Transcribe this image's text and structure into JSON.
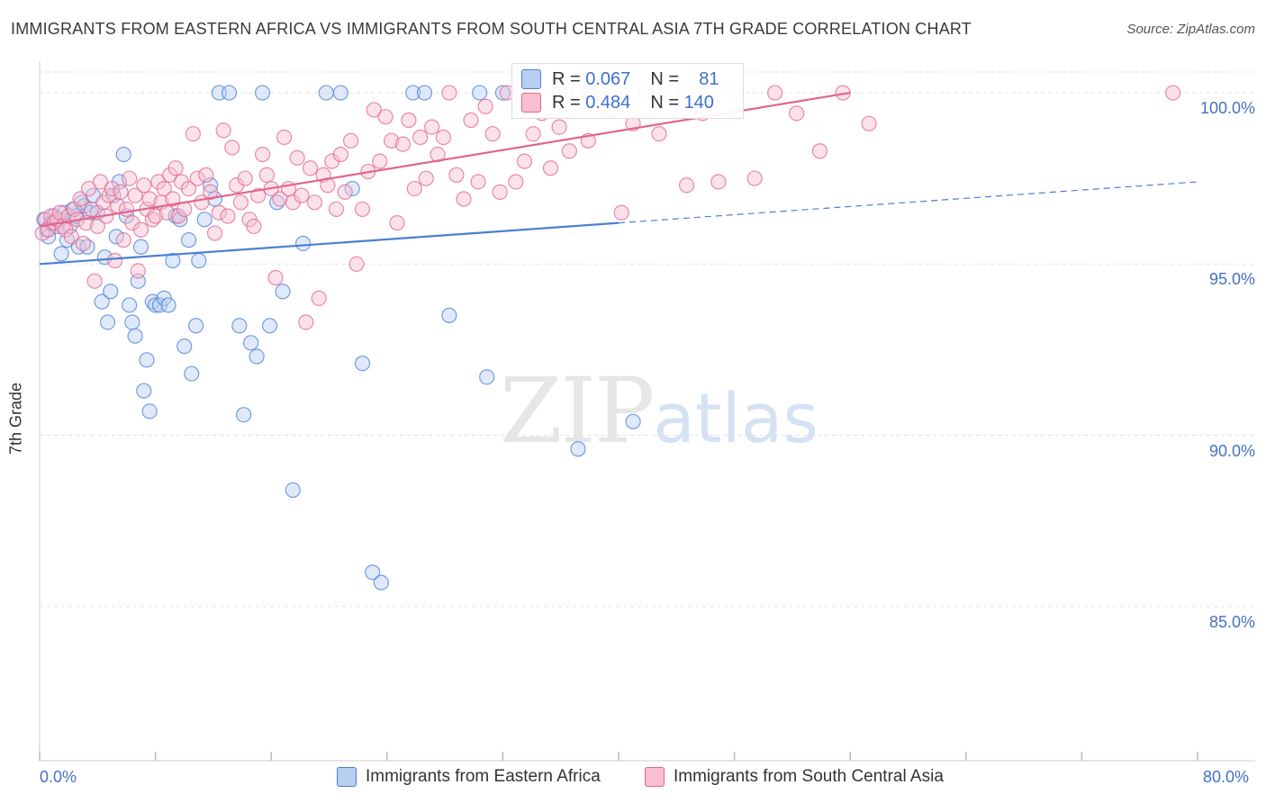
{
  "title": "IMMIGRANTS FROM EASTERN AFRICA VS IMMIGRANTS FROM SOUTH CENTRAL ASIA 7TH GRADE CORRELATION CHART",
  "source": "Source: ZipAtlas.com",
  "watermark": {
    "zip": "ZIP",
    "atlas": "atlas"
  },
  "colors": {
    "blue": "#4a7fd4",
    "blue_fill": "#b8cff1",
    "pink": "#e0668f",
    "pink_fill": "#f7bfd1",
    "tick_label": "#4472c4"
  },
  "legend": {
    "r_label": "R =",
    "n_label": "N =",
    "rows": [
      {
        "r": "0.067",
        "n": "81"
      },
      {
        "r": "0.484",
        "n": "140"
      }
    ]
  },
  "chart_data": {
    "type": "scatter",
    "title": "IMMIGRANTS FROM EASTERN AFRICA VS IMMIGRANTS FROM SOUTH CENTRAL ASIA 7TH GRADE CORRELATION CHART",
    "xlabel": "",
    "ylabel": "7th Grade",
    "xlim": [
      0,
      80
    ],
    "ylim": [
      80.5,
      101.0
    ],
    "x_tick_labels": [
      "0.0%",
      "80.0%"
    ],
    "y_ticks": [
      {
        "value": 100,
        "label": "100.0%"
      },
      {
        "value": 95,
        "label": "95.0%"
      },
      {
        "value": 90,
        "label": "90.0%"
      },
      {
        "value": 85,
        "label": "85.0%"
      }
    ],
    "grid": true,
    "legend_position": "top",
    "series": [
      {
        "name": "Immigrants from Eastern Africa",
        "r": 0.067,
        "n": 81,
        "trend": {
          "x0": 0,
          "y0": 95.0,
          "x1": 40,
          "y1": 96.2,
          "dashed_to_x": 80,
          "dashed_to_y": 97.4
        },
        "points": [
          [
            0.3,
            96.3
          ],
          [
            0.5,
            96.0
          ],
          [
            0.6,
            95.8
          ],
          [
            0.8,
            96.2
          ],
          [
            1.0,
            96.4
          ],
          [
            1.2,
            96.1
          ],
          [
            1.4,
            96.3
          ],
          [
            1.5,
            95.3
          ],
          [
            1.7,
            96.5
          ],
          [
            1.9,
            95.7
          ],
          [
            2.1,
            96.1
          ],
          [
            2.3,
            96.6
          ],
          [
            2.5,
            96.4
          ],
          [
            2.7,
            95.5
          ],
          [
            2.9,
            96.8
          ],
          [
            3.1,
            96.7
          ],
          [
            3.3,
            95.5
          ],
          [
            3.5,
            96.5
          ],
          [
            3.7,
            97.0
          ],
          [
            4.0,
            96.5
          ],
          [
            4.3,
            93.9
          ],
          [
            4.5,
            95.2
          ],
          [
            4.7,
            93.3
          ],
          [
            4.9,
            94.2
          ],
          [
            5.1,
            97.0
          ],
          [
            5.3,
            95.8
          ],
          [
            5.5,
            97.4
          ],
          [
            5.8,
            98.2
          ],
          [
            6.0,
            96.4
          ],
          [
            6.2,
            93.8
          ],
          [
            6.4,
            93.3
          ],
          [
            6.6,
            92.9
          ],
          [
            6.8,
            94.5
          ],
          [
            7.0,
            95.5
          ],
          [
            7.2,
            91.3
          ],
          [
            7.4,
            92.2
          ],
          [
            7.6,
            90.7
          ],
          [
            7.8,
            93.9
          ],
          [
            8.0,
            93.8
          ],
          [
            8.3,
            93.8
          ],
          [
            8.6,
            94.0
          ],
          [
            8.9,
            93.8
          ],
          [
            9.2,
            95.1
          ],
          [
            9.4,
            96.4
          ],
          [
            9.7,
            96.3
          ],
          [
            10.0,
            92.6
          ],
          [
            10.3,
            95.7
          ],
          [
            10.5,
            91.8
          ],
          [
            10.8,
            93.2
          ],
          [
            11.0,
            95.1
          ],
          [
            11.4,
            96.3
          ],
          [
            11.8,
            97.3
          ],
          [
            12.1,
            96.9
          ],
          [
            12.4,
            100.0
          ],
          [
            13.1,
            100.0
          ],
          [
            13.8,
            93.2
          ],
          [
            14.1,
            90.6
          ],
          [
            14.6,
            92.7
          ],
          [
            15.0,
            92.3
          ],
          [
            15.4,
            100.0
          ],
          [
            15.9,
            93.2
          ],
          [
            16.4,
            96.8
          ],
          [
            16.8,
            94.2
          ],
          [
            17.5,
            88.4
          ],
          [
            18.2,
            95.6
          ],
          [
            19.8,
            100.0
          ],
          [
            20.8,
            100.0
          ],
          [
            21.6,
            97.2
          ],
          [
            22.3,
            92.1
          ],
          [
            23.0,
            86.0
          ],
          [
            23.6,
            85.7
          ],
          [
            25.8,
            100.0
          ],
          [
            26.6,
            100.0
          ],
          [
            28.3,
            93.5
          ],
          [
            30.4,
            100.0
          ],
          [
            30.9,
            91.7
          ],
          [
            32.0,
            100.0
          ],
          [
            35.9,
            100.0
          ],
          [
            37.2,
            89.6
          ],
          [
            38.0,
            100.0
          ],
          [
            41.0,
            90.4
          ]
        ]
      },
      {
        "name": "Immigrants from South Central Asia",
        "r": 0.484,
        "n": 140,
        "trend": {
          "x0": 0,
          "y0": 96.1,
          "x1": 56,
          "y1": 100.0
        },
        "points": [
          [
            0.2,
            95.9
          ],
          [
            0.4,
            96.3
          ],
          [
            0.6,
            96.0
          ],
          [
            0.8,
            96.4
          ],
          [
            1.0,
            96.2
          ],
          [
            1.2,
            96.3
          ],
          [
            1.4,
            96.5
          ],
          [
            1.6,
            96.1
          ],
          [
            1.8,
            96.0
          ],
          [
            2.0,
            96.4
          ],
          [
            2.2,
            95.8
          ],
          [
            2.4,
            96.6
          ],
          [
            2.6,
            96.3
          ],
          [
            2.8,
            96.9
          ],
          [
            3.0,
            95.6
          ],
          [
            3.2,
            96.2
          ],
          [
            3.4,
            97.2
          ],
          [
            3.6,
            96.6
          ],
          [
            3.8,
            94.5
          ],
          [
            4.0,
            96.1
          ],
          [
            4.2,
            97.4
          ],
          [
            4.4,
            96.8
          ],
          [
            4.6,
            96.4
          ],
          [
            4.8,
            97.0
          ],
          [
            5.0,
            97.2
          ],
          [
            5.2,
            95.1
          ],
          [
            5.4,
            96.7
          ],
          [
            5.6,
            97.1
          ],
          [
            5.8,
            95.7
          ],
          [
            6.0,
            96.6
          ],
          [
            6.2,
            97.5
          ],
          [
            6.4,
            96.2
          ],
          [
            6.6,
            97.0
          ],
          [
            6.8,
            94.8
          ],
          [
            7.0,
            96.0
          ],
          [
            7.2,
            97.3
          ],
          [
            7.4,
            96.6
          ],
          [
            7.6,
            96.9
          ],
          [
            7.8,
            96.3
          ],
          [
            8.0,
            96.4
          ],
          [
            8.2,
            97.4
          ],
          [
            8.4,
            96.8
          ],
          [
            8.6,
            97.2
          ],
          [
            8.8,
            96.5
          ],
          [
            9.0,
            97.6
          ],
          [
            9.2,
            96.9
          ],
          [
            9.4,
            97.8
          ],
          [
            9.6,
            96.4
          ],
          [
            9.8,
            97.4
          ],
          [
            10.0,
            96.6
          ],
          [
            10.3,
            97.2
          ],
          [
            10.6,
            98.8
          ],
          [
            10.9,
            97.5
          ],
          [
            11.2,
            96.8
          ],
          [
            11.5,
            97.6
          ],
          [
            11.8,
            97.1
          ],
          [
            12.1,
            95.9
          ],
          [
            12.4,
            96.5
          ],
          [
            12.7,
            98.9
          ],
          [
            13.0,
            96.4
          ],
          [
            13.3,
            98.4
          ],
          [
            13.6,
            97.3
          ],
          [
            13.9,
            96.8
          ],
          [
            14.2,
            97.5
          ],
          [
            14.5,
            96.3
          ],
          [
            14.8,
            96.1
          ],
          [
            15.1,
            97.0
          ],
          [
            15.4,
            98.2
          ],
          [
            15.7,
            97.6
          ],
          [
            16.0,
            97.2
          ],
          [
            16.3,
            94.6
          ],
          [
            16.6,
            96.9
          ],
          [
            16.9,
            98.7
          ],
          [
            17.2,
            97.2
          ],
          [
            17.5,
            96.8
          ],
          [
            17.8,
            98.1
          ],
          [
            18.1,
            97.0
          ],
          [
            18.4,
            93.3
          ],
          [
            18.7,
            97.8
          ],
          [
            19.0,
            96.8
          ],
          [
            19.3,
            94.0
          ],
          [
            19.6,
            97.6
          ],
          [
            19.9,
            97.3
          ],
          [
            20.2,
            98.0
          ],
          [
            20.5,
            96.6
          ],
          [
            20.8,
            98.2
          ],
          [
            21.1,
            97.1
          ],
          [
            21.5,
            98.6
          ],
          [
            21.9,
            95.0
          ],
          [
            22.3,
            96.6
          ],
          [
            22.7,
            97.7
          ],
          [
            23.1,
            99.5
          ],
          [
            23.5,
            98.0
          ],
          [
            23.9,
            99.3
          ],
          [
            24.3,
            98.6
          ],
          [
            24.7,
            96.2
          ],
          [
            25.1,
            98.5
          ],
          [
            25.5,
            99.2
          ],
          [
            25.9,
            97.2
          ],
          [
            26.3,
            98.7
          ],
          [
            26.7,
            97.5
          ],
          [
            27.1,
            99.0
          ],
          [
            27.5,
            98.2
          ],
          [
            27.9,
            98.7
          ],
          [
            28.3,
            100.0
          ],
          [
            28.8,
            97.6
          ],
          [
            29.3,
            96.9
          ],
          [
            29.8,
            99.2
          ],
          [
            30.3,
            97.4
          ],
          [
            30.8,
            99.6
          ],
          [
            31.3,
            98.8
          ],
          [
            31.8,
            97.1
          ],
          [
            32.3,
            100.0
          ],
          [
            32.9,
            97.4
          ],
          [
            33.5,
            98.0
          ],
          [
            34.1,
            98.8
          ],
          [
            34.7,
            99.4
          ],
          [
            35.3,
            97.8
          ],
          [
            35.9,
            99.0
          ],
          [
            36.6,
            98.3
          ],
          [
            37.2,
            100.0
          ],
          [
            37.9,
            98.6
          ],
          [
            38.6,
            100.0
          ],
          [
            39.4,
            99.5
          ],
          [
            40.2,
            96.5
          ],
          [
            41.0,
            99.1
          ],
          [
            41.9,
            100.0
          ],
          [
            42.8,
            98.8
          ],
          [
            43.7,
            100.0
          ],
          [
            44.7,
            97.3
          ],
          [
            45.8,
            99.4
          ],
          [
            46.9,
            97.4
          ],
          [
            48.1,
            100.0
          ],
          [
            49.4,
            97.5
          ],
          [
            50.8,
            100.0
          ],
          [
            52.3,
            99.4
          ],
          [
            53.9,
            98.3
          ],
          [
            55.5,
            100.0
          ],
          [
            57.3,
            99.1
          ],
          [
            78.3,
            100.0
          ]
        ]
      }
    ]
  },
  "bottom_legend": [
    {
      "label": "Immigrants from Eastern Africa"
    },
    {
      "label": "Immigrants from South Central Asia"
    }
  ]
}
